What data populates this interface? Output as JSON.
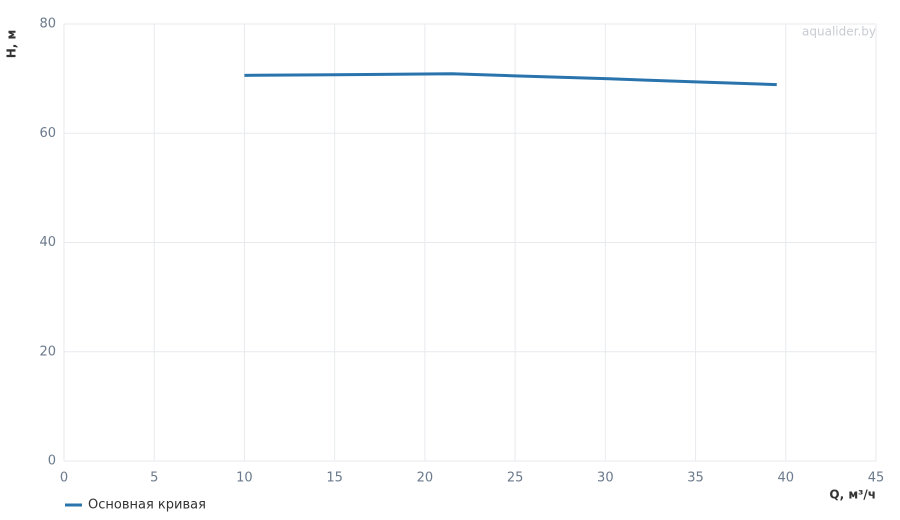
{
  "chart_data": {
    "type": "line",
    "watermark": "aqualider.by",
    "x_label": "Q, м³/ч",
    "y_label": "H, м",
    "xlim": [
      0,
      45
    ],
    "xticks": [
      0,
      5,
      10,
      15,
      20,
      25,
      30,
      35,
      40,
      45
    ],
    "ylim": [
      0,
      80
    ],
    "yticks": [
      0,
      20,
      40,
      60,
      80
    ],
    "grid": true,
    "x": [
      10,
      15,
      21.5,
      25,
      30,
      35,
      39.5
    ],
    "series": [
      {
        "name": "Основная кривая",
        "color": "#2a74ad",
        "values": [
          70.6,
          70.7,
          70.9,
          70.5,
          70.0,
          69.4,
          68.9
        ]
      }
    ]
  }
}
